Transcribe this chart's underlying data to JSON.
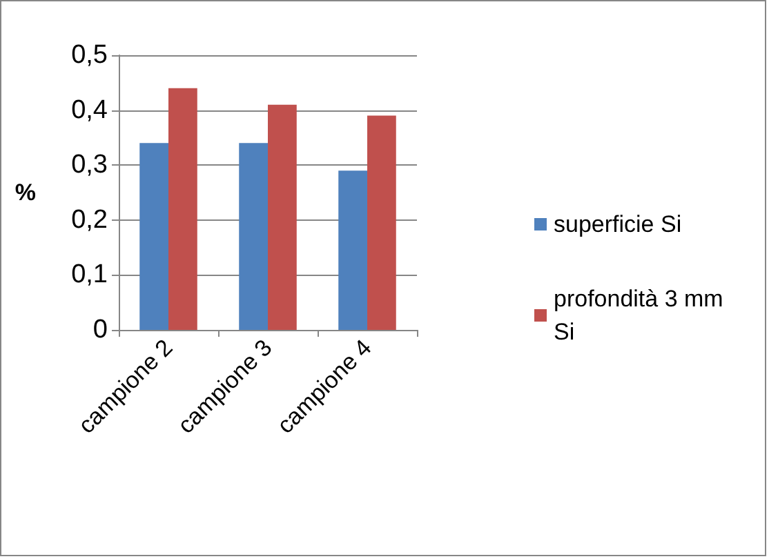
{
  "chart_data": {
    "type": "bar",
    "ylabel": "%",
    "categories": [
      "campione 2",
      "campione 3",
      "campione 4"
    ],
    "series": [
      {
        "name": "superficie Si",
        "color": "#4f81bd",
        "values": [
          0.34,
          0.34,
          0.29
        ]
      },
      {
        "name": "profondità 3 mm Si",
        "color": "#c0504d",
        "values": [
          0.44,
          0.41,
          0.39
        ]
      }
    ],
    "ylim": [
      0,
      0.5
    ],
    "yticks": [
      {
        "value": 0,
        "label": "0"
      },
      {
        "value": 0.1,
        "label": "0,1"
      },
      {
        "value": 0.2,
        "label": "0,2"
      },
      {
        "value": 0.3,
        "label": "0,3"
      },
      {
        "value": 0.4,
        "label": "0,4"
      },
      {
        "value": 0.5,
        "label": "0,5"
      }
    ],
    "grid": "y",
    "legend": "right"
  }
}
